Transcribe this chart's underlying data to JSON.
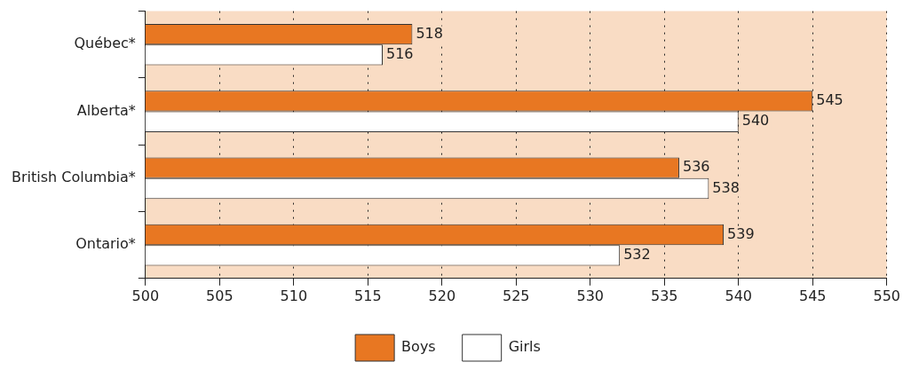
{
  "chart_data": {
    "type": "bar",
    "orientation": "horizontal",
    "categories": [
      "Québec*",
      "Alberta*",
      "British Columbia*",
      "Ontario*"
    ],
    "series": [
      {
        "name": "Boys",
        "color": "#e87722",
        "values": [
          518,
          545,
          536,
          539
        ]
      },
      {
        "name": "Girls",
        "color": "#ffffff",
        "values": [
          516,
          540,
          538,
          532
        ]
      }
    ],
    "xlim": [
      500,
      550
    ],
    "xticks": [
      500,
      505,
      510,
      515,
      520,
      525,
      530,
      535,
      540,
      545,
      550
    ],
    "grid": "x",
    "line_style": "dotted",
    "legend": "bottom",
    "data_labels": true
  }
}
